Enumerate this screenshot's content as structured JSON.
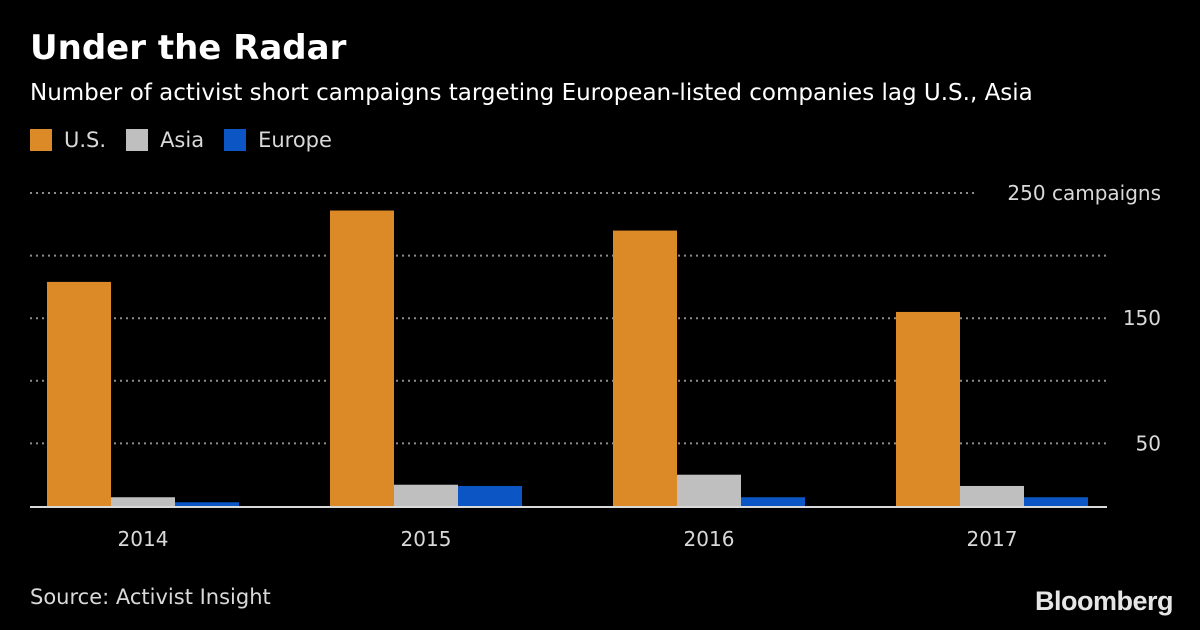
{
  "title": "Under the Radar",
  "subtitle": "Number of activist short campaigns targeting European-listed companies lag U.S., Asia",
  "source": "Source: Activist Insight",
  "brand": "Bloomberg",
  "chart_data": {
    "type": "bar",
    "categories": [
      "2014",
      "2015",
      "2016",
      "2017"
    ],
    "series": [
      {
        "name": "U.S.",
        "color": "#dc8a28",
        "values": [
          179,
          236,
          220,
          155
        ]
      },
      {
        "name": "Asia",
        "color": "#bfbfbf",
        "values": [
          7,
          17,
          25,
          16
        ]
      },
      {
        "name": "Europe",
        "color": "#0b56c4",
        "values": [
          3,
          16,
          7,
          7
        ]
      }
    ],
    "y_ticks": [
      {
        "value": 250,
        "label": "250 campaigns"
      },
      {
        "value": 200,
        "label": ""
      },
      {
        "value": 150,
        "label": "150"
      },
      {
        "value": 100,
        "label": ""
      },
      {
        "value": 50,
        "label": "50"
      }
    ],
    "ylim": [
      0,
      250
    ],
    "grid": true,
    "legend_position": "top-left"
  }
}
